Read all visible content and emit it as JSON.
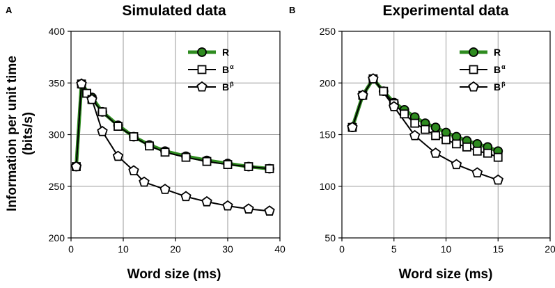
{
  "chart_data": [
    {
      "type": "line",
      "panel_letter": "A",
      "title": "Simulated data",
      "xlabel": "Word size (ms)",
      "ylabel_line1": "Information per unit time",
      "ylabel_line2": "(bits/s)",
      "xlim": [
        0,
        40
      ],
      "ylim": [
        200,
        400
      ],
      "xticks": [
        0,
        10,
        20,
        30,
        40
      ],
      "yticks": [
        200,
        250,
        300,
        350,
        400
      ],
      "grid": true,
      "legend_position": "top-right",
      "series": [
        {
          "name": "R",
          "name_sup": "",
          "color": "#2e8b1f",
          "marker": "circle",
          "x": [
            1,
            2,
            4,
            6,
            9,
            12,
            15,
            18,
            22,
            26,
            30,
            34,
            38
          ],
          "values": [
            269,
            349,
            336,
            322,
            309,
            298,
            290,
            284,
            279,
            275,
            272,
            269,
            267
          ]
        },
        {
          "name": "B",
          "name_sup": "α",
          "color": "#000000",
          "marker": "square",
          "x": [
            1,
            2,
            3,
            4,
            6,
            9,
            12,
            15,
            18,
            22,
            26,
            30,
            34,
            38
          ],
          "values": [
            269,
            349,
            340,
            334,
            322,
            308,
            298,
            289,
            283,
            278,
            274,
            271,
            269,
            267
          ]
        },
        {
          "name": "B",
          "name_sup": "β",
          "color": "#000000",
          "marker": "pentagon",
          "x": [
            1,
            2,
            4,
            6,
            9,
            12,
            14,
            18,
            22,
            26,
            30,
            34,
            38
          ],
          "values": [
            269,
            349,
            334,
            303,
            279,
            265,
            254,
            247,
            240,
            235,
            231,
            228,
            226
          ]
        }
      ]
    },
    {
      "type": "line",
      "panel_letter": "B",
      "title": "Experimental data",
      "xlabel": "Word size (ms)",
      "xlim": [
        0,
        20
      ],
      "ylim": [
        50,
        250
      ],
      "xticks": [
        0,
        5,
        10,
        15,
        20
      ],
      "yticks": [
        50,
        100,
        150,
        200,
        250
      ],
      "grid": true,
      "legend_position": "top-right",
      "series": [
        {
          "name": "R",
          "name_sup": "",
          "color": "#2e8b1f",
          "marker": "circle",
          "x": [
            1,
            2,
            3,
            4,
            5,
            6,
            7,
            8,
            9,
            10,
            11,
            12,
            13,
            14,
            15
          ],
          "values": [
            157,
            188,
            204,
            192,
            181,
            174,
            167,
            161,
            157,
            152,
            148,
            144,
            141,
            138,
            134
          ]
        },
        {
          "name": "B",
          "name_sup": "α",
          "color": "#000000",
          "marker": "square",
          "x": [
            1,
            2,
            3,
            4,
            5,
            6,
            7,
            8,
            9,
            10,
            11,
            12,
            13,
            14,
            15
          ],
          "values": [
            157,
            188,
            204,
            192,
            180,
            170,
            161,
            155,
            149,
            145,
            141,
            138,
            134,
            132,
            128
          ]
        },
        {
          "name": "B",
          "name_sup": "β",
          "color": "#000000",
          "marker": "pentagon",
          "x": [
            1,
            2,
            3,
            5,
            7,
            9,
            11,
            13,
            15
          ],
          "values": [
            157,
            188,
            204,
            177,
            149,
            132,
            121,
            113,
            106
          ]
        }
      ]
    }
  ]
}
